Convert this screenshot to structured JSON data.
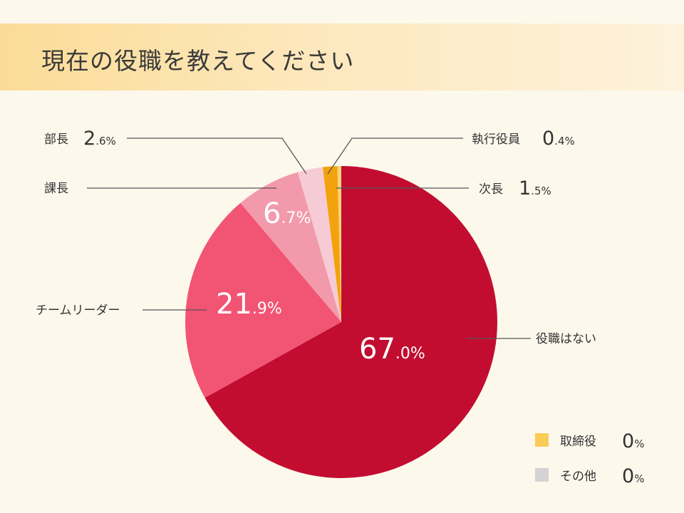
{
  "chart_data": {
    "type": "pie",
    "title": "現在の役職を教えてください",
    "slices": [
      {
        "label": "役職はない",
        "value": 67.0,
        "color": "#c20d30",
        "int": "67",
        "dec": ".0"
      },
      {
        "label": "チームリーダー",
        "value": 21.9,
        "color": "#f25473",
        "int": "21",
        "dec": ".9"
      },
      {
        "label": "課長",
        "value": 6.7,
        "color": "#f29aab",
        "int": "6",
        "dec": ".7"
      },
      {
        "label": "部長",
        "value": 2.6,
        "color": "#f7cbd5",
        "int": "2",
        "dec": ".6"
      },
      {
        "label": "次長",
        "value": 1.5,
        "color": "#f2a20c",
        "int": "1",
        "dec": ".5"
      },
      {
        "label": "執行役員",
        "value": 0.4,
        "color": "#f8d27a",
        "int": "0",
        "dec": ".4"
      }
    ],
    "legend": [
      {
        "label": "取締役",
        "value": "0",
        "color": "#fbcb57"
      },
      {
        "label": "その他",
        "value": "0",
        "color": "#d4d2d2"
      }
    ],
    "unit": "%"
  }
}
